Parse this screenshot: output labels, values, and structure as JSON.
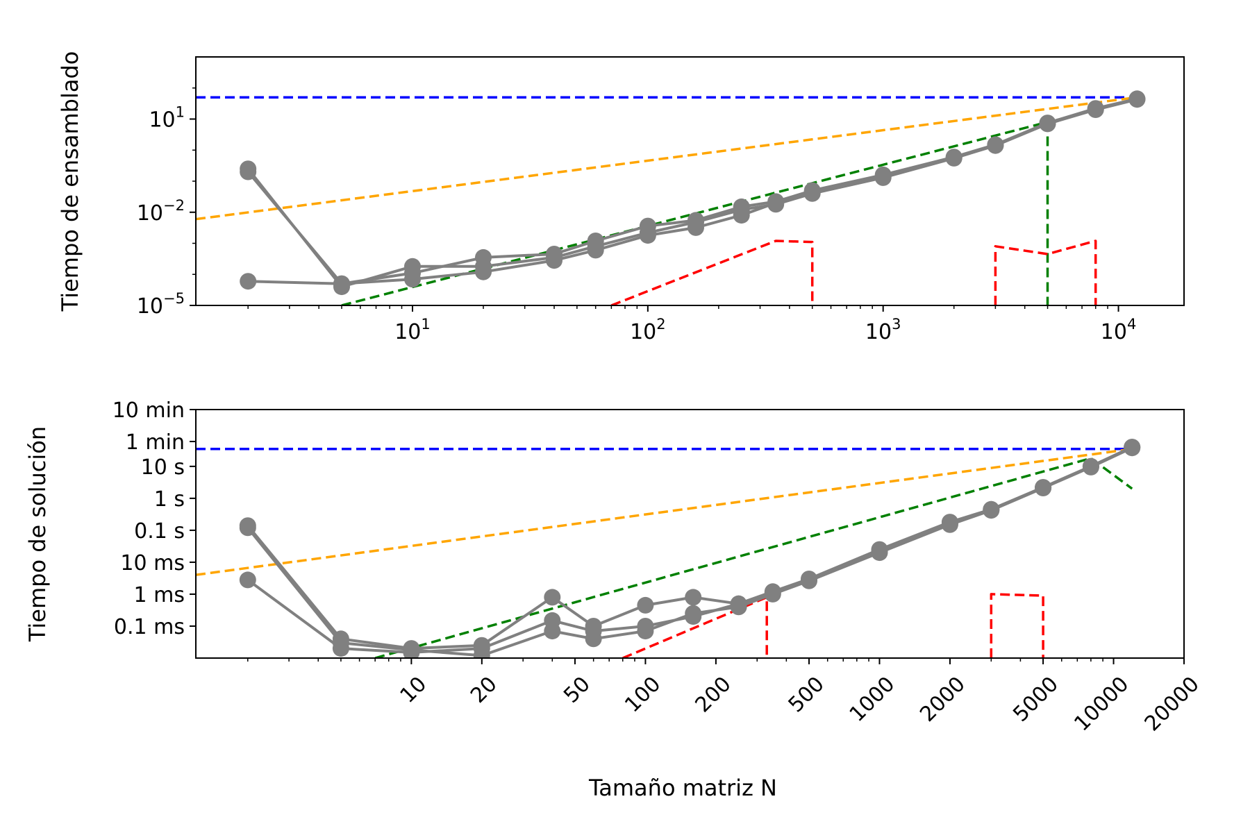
{
  "chart_data": [
    {
      "type": "line",
      "ylabel": "Tiempo de ensamblado",
      "xscale": "log",
      "yscale": "log",
      "xlim": [
        1.2,
        19000
      ],
      "ylim": [
        1e-05,
        1000
      ],
      "x_ticks": [
        {
          "value": 10,
          "base": "10",
          "exp": "1"
        },
        {
          "value": 100,
          "base": "10",
          "exp": "2"
        },
        {
          "value": 1000,
          "base": "10",
          "exp": "3"
        },
        {
          "value": 10000,
          "base": "10",
          "exp": "4"
        }
      ],
      "y_ticks": [
        {
          "value": 1e-05,
          "base": "10",
          "exp": "−5"
        },
        {
          "value": 0.01,
          "base": "10",
          "exp": "−2"
        },
        {
          "value": 10,
          "base": "10",
          "exp": "1"
        }
      ],
      "series": [
        {
          "color": "#808080",
          "style": "solid",
          "marker": true,
          "x": [
            2,
            5,
            10,
            20,
            40,
            60,
            100,
            160,
            250,
            350,
            500,
            1000,
            2000,
            3000,
            5000,
            8000,
            12000
          ],
          "y": [
            0.2,
            5e-05,
            0.00011,
            0.00035,
            0.00045,
            0.0012,
            0.0036,
            0.0055,
            0.015,
            0.022,
            0.05,
            0.16,
            0.6,
            1.5,
            7.5,
            22,
            45
          ]
        },
        {
          "color": "#808080",
          "style": "solid",
          "marker": true,
          "x": [
            2,
            5,
            10,
            20,
            40,
            60,
            100,
            160,
            250,
            350,
            500,
            1000,
            2000,
            3000,
            5000,
            8000,
            12000
          ],
          "y": [
            6e-05,
            5e-05,
            7e-05,
            0.00012,
            0.00028,
            0.0006,
            0.0018,
            0.0032,
            0.008,
            0.02,
            0.045,
            0.14,
            0.58,
            1.45,
            7.2,
            21,
            44
          ]
        },
        {
          "color": "#808080",
          "style": "solid",
          "marker": true,
          "x": [
            2,
            5,
            10,
            20,
            40,
            60,
            100,
            160,
            250,
            350,
            500,
            1000,
            2000,
            3000,
            5000,
            8000,
            12000
          ],
          "y": [
            0.25,
            4e-05,
            0.00018,
            0.00018,
            0.00035,
            0.0008,
            0.0022,
            0.0048,
            0.012,
            0.018,
            0.04,
            0.13,
            0.55,
            1.4,
            7.0,
            20,
            43
          ]
        },
        {
          "color": "#0000ff",
          "style": "dashed",
          "marker": false,
          "x": [
            1.2,
            12000
          ],
          "y": [
            50,
            50
          ]
        },
        {
          "color": "#ffa500",
          "style": "dashed",
          "marker": false,
          "x": [
            1.2,
            12000
          ],
          "y": [
            0.006,
            50
          ]
        },
        {
          "color": "#008000",
          "style": "dashed",
          "marker": false,
          "x": [
            5,
            5000,
            5000
          ],
          "y": [
            1e-05,
            8,
            1e-05
          ]
        },
        {
          "color": "#ff0000",
          "style": "dashed",
          "marker": false,
          "x": [
            70,
            350,
            500,
            500
          ],
          "y": [
            1e-05,
            0.0012,
            0.0011,
            1e-05
          ]
        },
        {
          "color": "#ff0000",
          "style": "dashed",
          "marker": false,
          "x": [
            3000,
            3000,
            5000,
            8000,
            8000
          ],
          "y": [
            1e-05,
            0.0008,
            0.00045,
            0.0012,
            1e-05
          ]
        }
      ]
    },
    {
      "type": "line",
      "ylabel": "Tiempo de solución",
      "xlabel": "Tamaño matriz N",
      "xscale": "log",
      "yscale": "log",
      "xlim": [
        1.2,
        20000
      ],
      "ylim": [
        1e-05,
        600
      ],
      "x_ticks": [
        {
          "value": 10,
          "label": "10"
        },
        {
          "value": 20,
          "label": "20"
        },
        {
          "value": 50,
          "label": "50"
        },
        {
          "value": 100,
          "label": "100"
        },
        {
          "value": 200,
          "label": "200"
        },
        {
          "value": 500,
          "label": "500"
        },
        {
          "value": 1000,
          "label": "1000"
        },
        {
          "value": 2000,
          "label": "2000"
        },
        {
          "value": 5000,
          "label": "5000"
        },
        {
          "value": 10000,
          "label": "10000"
        },
        {
          "value": 20000,
          "label": "20000"
        }
      ],
      "y_ticks": [
        {
          "value": 0.0001,
          "label": "0.1 ms"
        },
        {
          "value": 0.001,
          "label": "1 ms"
        },
        {
          "value": 0.01,
          "label": "10 ms"
        },
        {
          "value": 0.1,
          "label": "0.1 s"
        },
        {
          "value": 1,
          "label": "1 s"
        },
        {
          "value": 10,
          "label": "10 s"
        },
        {
          "value": 60,
          "label": "1 min"
        },
        {
          "value": 600,
          "label": "10 min"
        }
      ],
      "series": [
        {
          "color": "#808080",
          "style": "solid",
          "marker": true,
          "x": [
            2,
            5,
            10,
            20,
            40,
            60,
            100,
            160,
            250,
            350,
            500,
            1000,
            2000,
            3000,
            5000,
            8000,
            12000
          ],
          "y": [
            0.14,
            4e-05,
            2e-05,
            2.5e-05,
            0.0008,
            0.0001,
            0.00045,
            0.0008,
            0.0005,
            0.0012,
            0.003,
            0.025,
            0.18,
            0.45,
            2.2,
            10,
            40
          ]
        },
        {
          "color": "#808080",
          "style": "solid",
          "marker": true,
          "x": [
            2,
            5,
            10,
            20,
            40,
            60,
            100,
            160,
            250,
            350,
            500,
            1000,
            2000,
            3000,
            5000,
            8000,
            12000
          ],
          "y": [
            0.0028,
            2e-05,
            1.5e-05,
            2e-05,
            0.00015,
            7e-05,
            0.0001,
            0.0002,
            0.0005,
            0.0011,
            0.0028,
            0.022,
            0.16,
            0.45,
            2.2,
            10,
            40
          ]
        },
        {
          "color": "#808080",
          "style": "solid",
          "marker": true,
          "x": [
            2,
            5,
            10,
            20,
            40,
            60,
            100,
            160,
            250,
            350,
            500,
            1000,
            2000,
            3000,
            5000,
            8000,
            12000
          ],
          "y": [
            0.12,
            3e-05,
            1.8e-05,
            1.2e-05,
            7e-05,
            4e-05,
            7e-05,
            0.00025,
            0.0004,
            0.001,
            0.0026,
            0.02,
            0.15,
            0.42,
            2.1,
            9.5,
            38
          ]
        },
        {
          "color": "#0000ff",
          "style": "dashed",
          "marker": false,
          "x": [
            1.2,
            12000
          ],
          "y": [
            35,
            35
          ]
        },
        {
          "color": "#ffa500",
          "style": "dashed",
          "marker": false,
          "x": [
            1.2,
            12000
          ],
          "y": [
            0.004,
            35
          ]
        },
        {
          "color": "#008000",
          "style": "dashed",
          "marker": false,
          "x": [
            7,
            8000,
            12000
          ],
          "y": [
            1e-05,
            18,
            2
          ]
        },
        {
          "color": "#ff0000",
          "style": "dashed",
          "marker": false,
          "x": [
            80,
            330,
            330
          ],
          "y": [
            1e-05,
            0.0008,
            1e-05
          ]
        },
        {
          "color": "#ff0000",
          "style": "dashed",
          "marker": false,
          "x": [
            3000,
            3000,
            5000,
            5000
          ],
          "y": [
            1e-05,
            0.001,
            0.0009,
            1e-05
          ]
        }
      ]
    }
  ]
}
